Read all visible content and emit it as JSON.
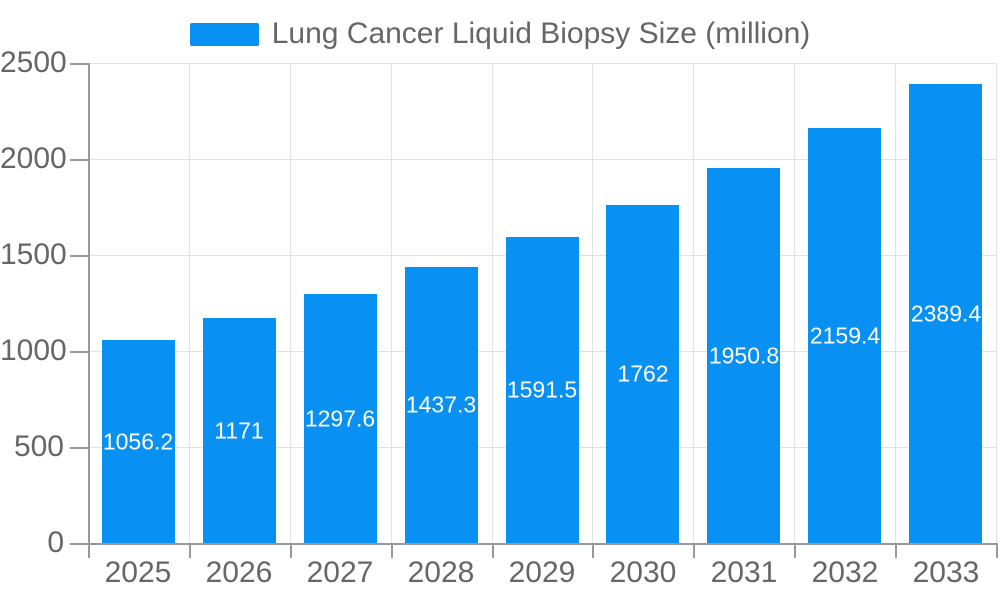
{
  "chart_data": {
    "type": "bar",
    "title": "Lung Cancer Liquid Biopsy Size (million)",
    "categories": [
      "2025",
      "2026",
      "2027",
      "2028",
      "2029",
      "2030",
      "2031",
      "2032",
      "2033"
    ],
    "series": [
      {
        "name": "Lung Cancer Liquid Biopsy Size (million)",
        "values": [
          1056.2,
          1171,
          1297.6,
          1437.3,
          1591.5,
          1762,
          1950.8,
          2159.4,
          2389.4
        ]
      }
    ],
    "value_labels": [
      "1056.2",
      "1171",
      "1297.6",
      "1437.3",
      "1591.5",
      "1762",
      "1950.8",
      "2159.4",
      "2389.4"
    ],
    "ytick_labels": [
      "0",
      "500",
      "1000",
      "1500",
      "2000",
      "2500"
    ],
    "ytick_values": [
      0,
      500,
      1000,
      1500,
      2000,
      2500
    ],
    "ylim": [
      0,
      2500
    ],
    "xlabel": "",
    "ylabel": "",
    "grid": true,
    "legend_position": "top",
    "value_label_position": "inside-center",
    "colors": {
      "bar": "#0891f2",
      "value_label": "#ffffff",
      "axis_text": "#666666",
      "grid_line": "#e2e2e2",
      "axis_line": "#999999"
    }
  }
}
